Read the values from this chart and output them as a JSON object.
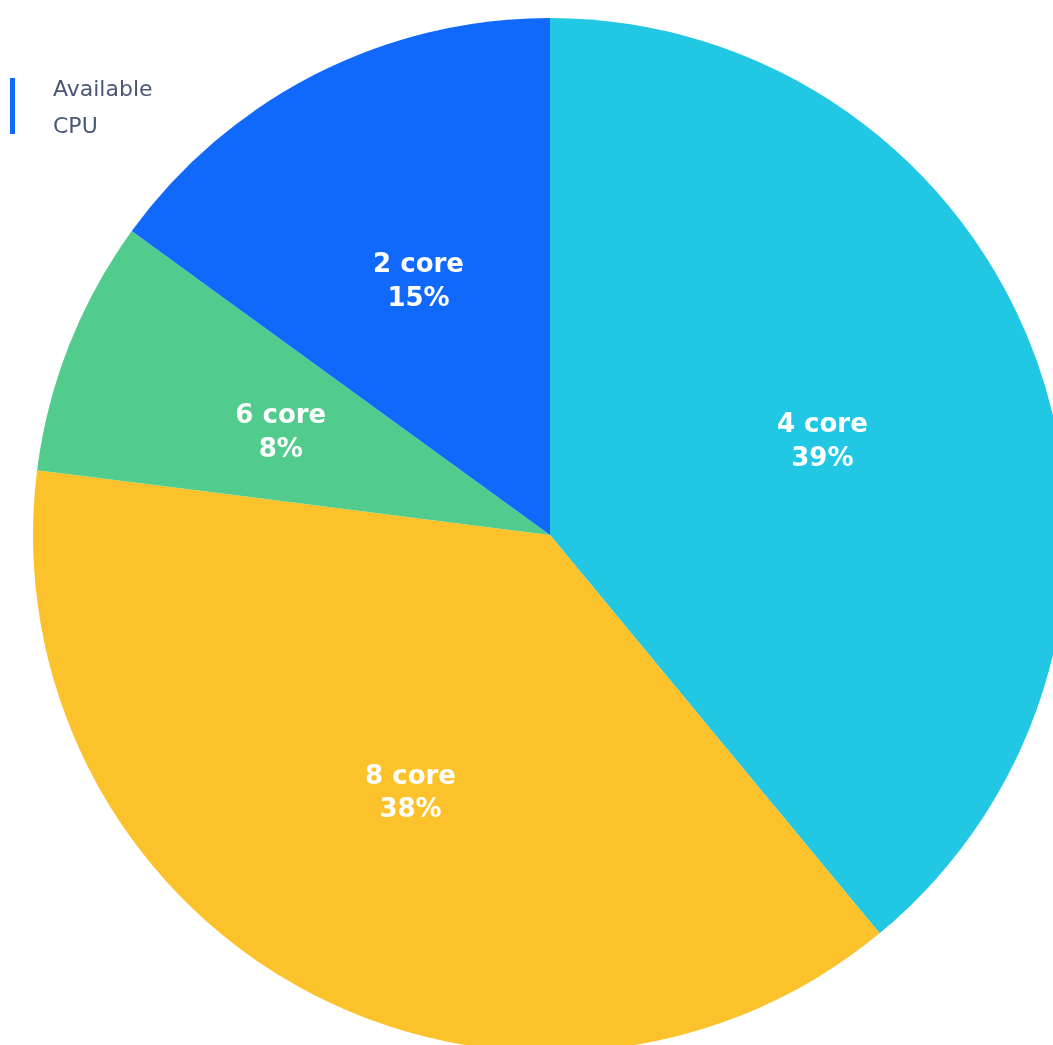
{
  "chart_data": {
    "type": "pie",
    "legend_title": "Available CPU",
    "categories": [
      "4 core",
      "8 core",
      "6 core",
      "2 core"
    ],
    "values": [
      39,
      38,
      8,
      15
    ],
    "value_labels": [
      "39%",
      "38%",
      "8%",
      "15%"
    ],
    "colors": [
      "#22c7e3",
      "#fcc22c",
      "#52cc8c",
      "#1169fc"
    ]
  }
}
